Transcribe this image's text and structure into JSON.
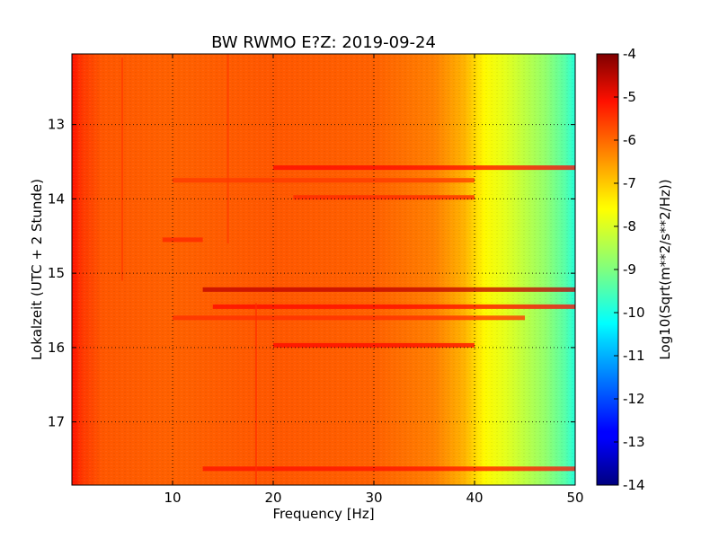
{
  "chart_data": {
    "type": "heatmap",
    "title": "BW RWMO E?Z: 2019-09-24",
    "xlabel": "Frequency [Hz]",
    "ylabel": "Lokalzeit (UTC + 2 Stunde)",
    "xlim": [
      0,
      50
    ],
    "ylim": [
      12.05,
      17.85
    ],
    "y_inverted": true,
    "x_ticks": [
      "10",
      "20",
      "30",
      "40",
      "50"
    ],
    "x_tick_values": [
      10,
      20,
      30,
      40,
      50
    ],
    "y_ticks": [
      "13",
      "14",
      "15",
      "16",
      "17"
    ],
    "y_tick_values": [
      13,
      14,
      15,
      16,
      17
    ],
    "grid": true,
    "colormap": "jet",
    "colorbar": {
      "label": "Log10(Sqrt(m**2/s**2/Hz))",
      "range": [
        -14,
        -4
      ],
      "ticks": [
        "-4",
        "-5",
        "-6",
        "-7",
        "-8",
        "-9",
        "-10",
        "-11",
        "-12",
        "-13",
        "-14"
      ],
      "tick_values": [
        -4,
        -5,
        -6,
        -7,
        -8,
        -9,
        -10,
        -11,
        -12,
        -13,
        -14
      ]
    },
    "spectrum_profile": [
      {
        "freq": 0,
        "value": -5.4
      },
      {
        "freq": 1,
        "value": -5.8
      },
      {
        "freq": 3,
        "value": -6.1
      },
      {
        "freq": 10,
        "value": -6.2
      },
      {
        "freq": 20,
        "value": -6.1
      },
      {
        "freq": 30,
        "value": -6.2
      },
      {
        "freq": 36,
        "value": -6.5
      },
      {
        "freq": 39,
        "value": -7.0
      },
      {
        "freq": 41,
        "value": -7.7
      },
      {
        "freq": 43,
        "value": -8.0
      },
      {
        "freq": 45,
        "value": -8.4
      },
      {
        "freq": 47,
        "value": -8.8
      },
      {
        "freq": 49,
        "value": -9.4
      },
      {
        "freq": 50,
        "value": -9.9
      }
    ],
    "horizontal_bands": [
      {
        "time": 13.58,
        "freq_start": 20,
        "freq_end": 50,
        "value": -5.3
      },
      {
        "time": 13.75,
        "freq_start": 10,
        "freq_end": 40,
        "value": -5.8
      },
      {
        "time": 13.98,
        "freq_start": 22,
        "freq_end": 40,
        "value": -5.6
      },
      {
        "time": 14.55,
        "freq_start": 9,
        "freq_end": 13,
        "value": -5.6
      },
      {
        "time": 15.22,
        "freq_start": 13,
        "freq_end": 50,
        "value": -4.6
      },
      {
        "time": 15.45,
        "freq_start": 14,
        "freq_end": 50,
        "value": -5.3
      },
      {
        "time": 15.6,
        "freq_start": 10,
        "freq_end": 45,
        "value": -5.7
      },
      {
        "time": 15.97,
        "freq_start": 20,
        "freq_end": 40,
        "value": -5.3
      },
      {
        "time": 17.63,
        "freq_start": 13,
        "freq_end": 50,
        "value": -5.4
      }
    ],
    "vertical_lines": [
      {
        "freq": 5,
        "time_start": 12.1,
        "time_end": 15.1,
        "value": -5.8
      },
      {
        "freq": 15.5,
        "time_start": 12.05,
        "time_end": 14.6,
        "value": -5.8
      },
      {
        "freq": 18.3,
        "time_start": 15.4,
        "time_end": 17.85,
        "value": -5.7
      }
    ]
  }
}
